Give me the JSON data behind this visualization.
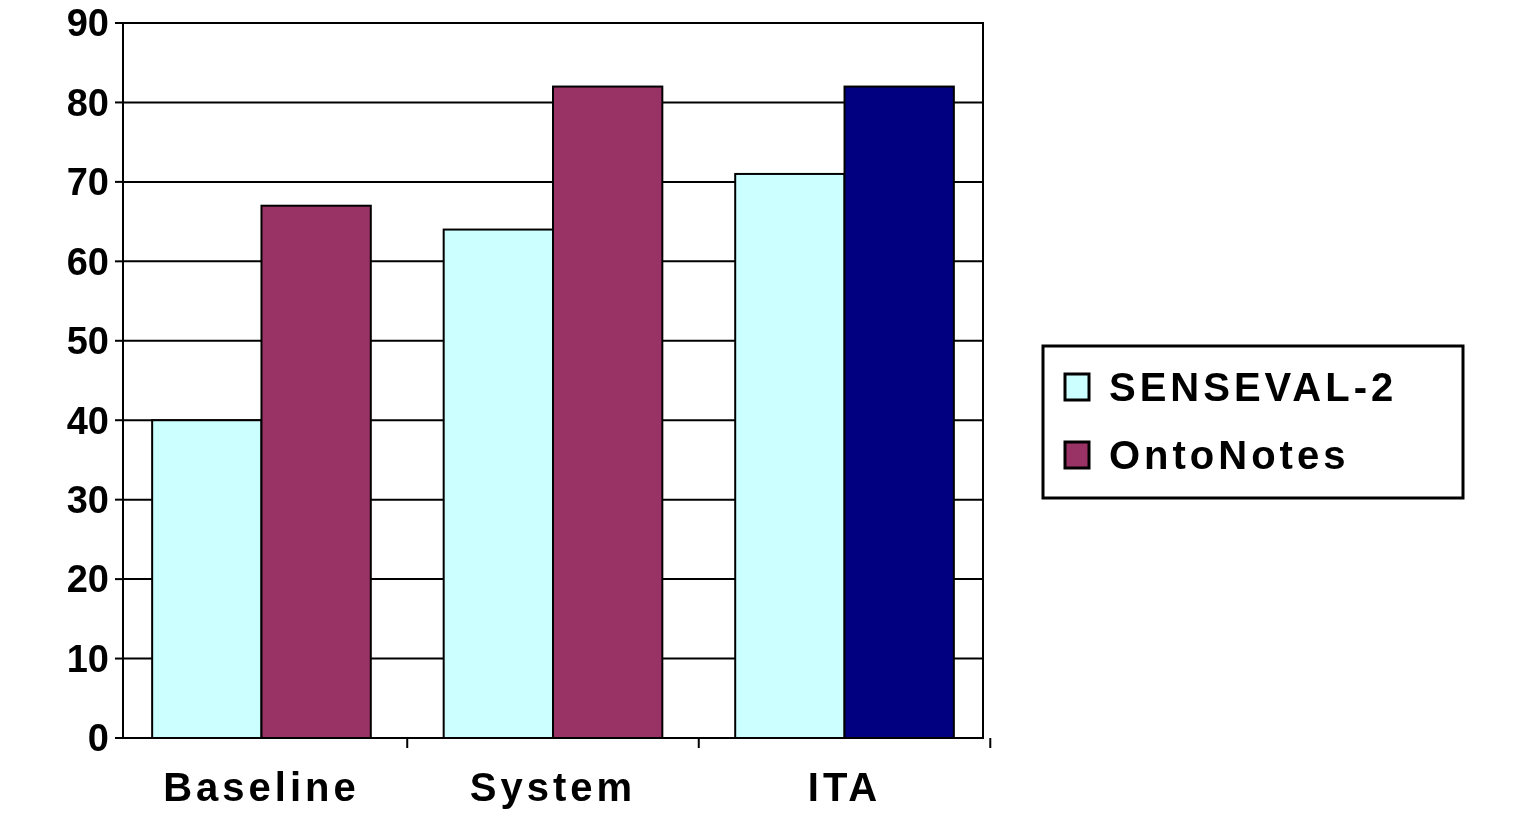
{
  "chart_data": {
    "type": "bar",
    "categories": [
      "Baseline",
      "System",
      "ITA"
    ],
    "series": [
      {
        "name": "SENSEVAL-2",
        "color": "#ccffff",
        "values": [
          40,
          64,
          71
        ]
      },
      {
        "name": "OntoNotes",
        "color": "#993366",
        "colors": [
          "#993366",
          "#993366",
          "#000080"
        ],
        "values": [
          67,
          82,
          82
        ]
      }
    ],
    "ylim": [
      0,
      90
    ],
    "yticks": [
      0,
      10,
      20,
      30,
      40,
      50,
      60,
      70,
      80,
      90
    ],
    "grid": "y",
    "legend": "right"
  }
}
